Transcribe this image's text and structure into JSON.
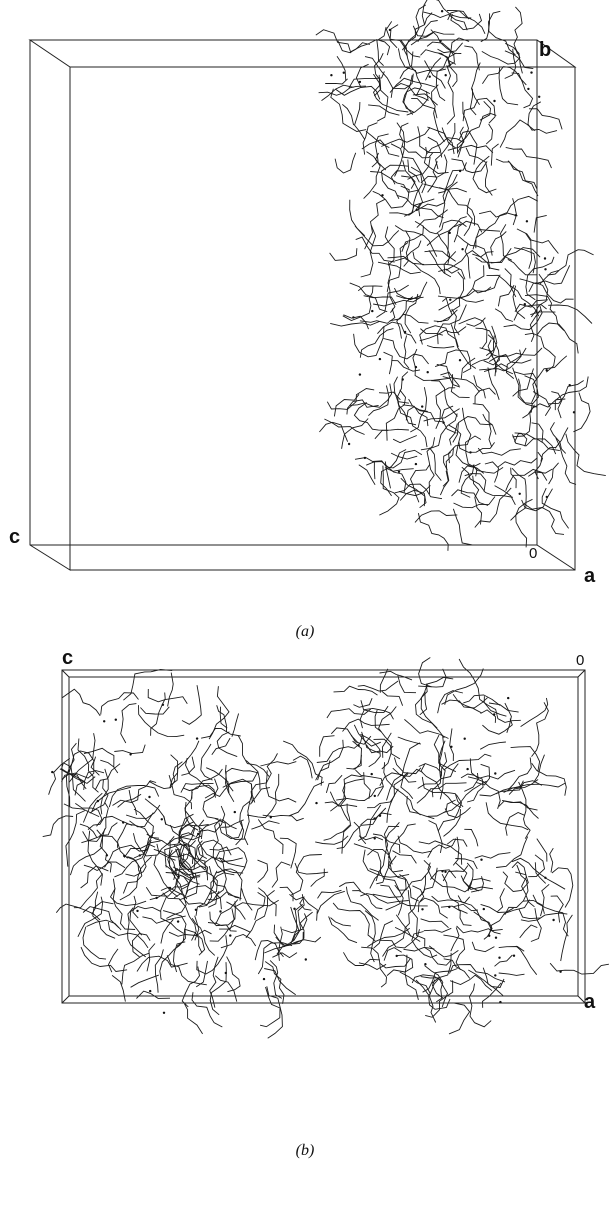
{
  "panels": [
    {
      "caption": "(a)",
      "labels": {
        "b": "b",
        "c": "c",
        "origin": "0",
        "a": "a"
      }
    },
    {
      "caption": "(b)",
      "labels": {
        "c": "c",
        "origin": "0",
        "a": "a"
      }
    }
  ]
}
